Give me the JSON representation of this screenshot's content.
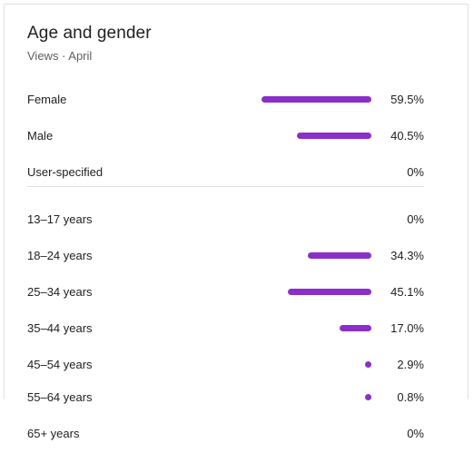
{
  "card": {
    "title": "Age and gender",
    "subtitle": "Views · April"
  },
  "bar_color": "#8b2fc9",
  "chart_data": {
    "type": "bar",
    "orientation": "horizontal",
    "gender": {
      "categories": [
        "Female",
        "Male",
        "User-specified"
      ],
      "values": [
        59.5,
        40.5,
        0
      ],
      "value_labels": [
        "59.5%",
        "40.5%",
        "0%"
      ]
    },
    "age": {
      "categories": [
        "13–17 years",
        "18–24 years",
        "25–34 years",
        "35–44 years",
        "45–54 years",
        "55–64 years",
        "65+ years"
      ],
      "values": [
        0,
        34.3,
        45.1,
        17.0,
        2.9,
        0.8,
        0
      ],
      "value_labels": [
        "0%",
        "34.3%",
        "45.1%",
        "17.0%",
        "2.9%",
        "0.8%",
        "0%"
      ]
    },
    "unit": "%"
  }
}
